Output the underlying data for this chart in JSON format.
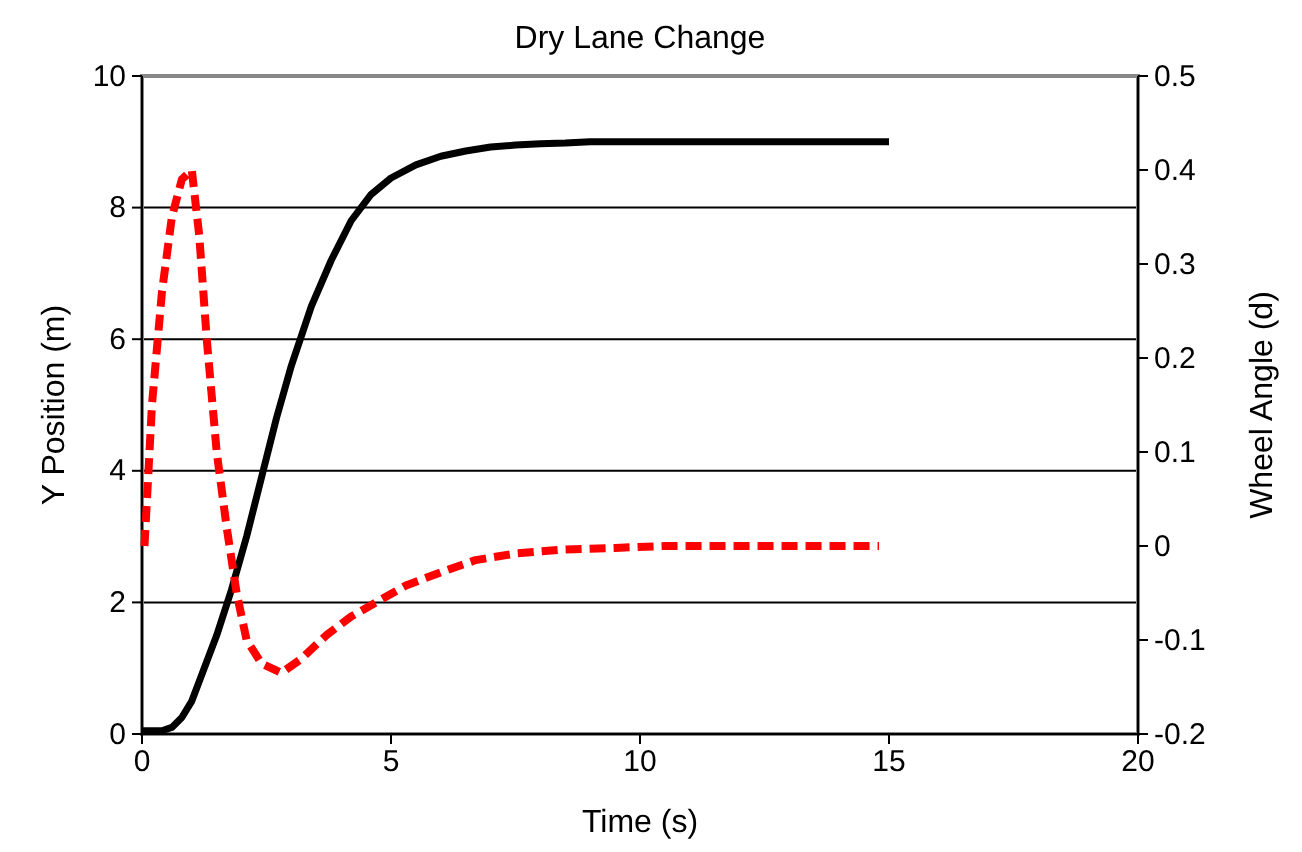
{
  "chart_data": {
    "type": "line",
    "title": "Dry Lane Change",
    "xlabel": "Time (s)",
    "ylabel": "Y Position (m)",
    "y2label": "Wheel Angle  (d)",
    "xlim": [
      0,
      20
    ],
    "xticks": [
      0,
      5,
      10,
      15,
      20
    ],
    "ylim": [
      0,
      10
    ],
    "yticks": [
      0,
      2,
      4,
      6,
      8,
      10
    ],
    "y2lim": [
      -0.2,
      0.5
    ],
    "y2ticks": [
      {
        "value": -0.2,
        "label": "-0.2"
      },
      {
        "value": -0.1,
        "label": "-0.1"
      },
      0,
      0.1,
      0.2,
      0.3,
      0.4,
      0.5
    ],
    "grid": "y",
    "series": [
      {
        "color": "#000000",
        "line_style": "solid",
        "x": [
          0,
          0.4,
          0.6,
          0.8,
          1.0,
          1.2,
          1.5,
          1.8,
          2.1,
          2.4,
          2.7,
          3.0,
          3.4,
          3.8,
          4.2,
          4.6,
          5.0,
          5.5,
          6.0,
          6.5,
          7.0,
          7.5,
          8.0,
          8.5,
          9,
          10,
          12,
          15
        ],
        "values": [
          0.05,
          0.05,
          0.1,
          0.25,
          0.5,
          0.9,
          1.5,
          2.2,
          3.0,
          3.9,
          4.8,
          5.6,
          6.5,
          7.2,
          7.8,
          8.2,
          8.45,
          8.65,
          8.78,
          8.86,
          8.92,
          8.95,
          8.97,
          8.98,
          9,
          9,
          9,
          9
        ]
      },
      {
        "color": "#ff0000",
        "axis": "y2",
        "line_style": "dashed",
        "x": [
          0.05,
          0.2,
          0.4,
          0.6,
          0.8,
          1.0,
          1.15,
          1.3,
          1.5,
          1.7,
          1.9,
          2.1,
          2.4,
          2.8,
          3.2,
          3.7,
          4.2,
          4.7,
          5.3,
          6.0,
          6.7,
          7.5,
          8.4,
          9.5,
          10.5,
          12,
          13.5,
          14.8
        ],
        "values": [
          0,
          0.15,
          0.27,
          0.35,
          0.39,
          0.4,
          0.33,
          0.22,
          0.1,
          0.02,
          -0.05,
          -0.1,
          -0.125,
          -0.135,
          -0.12,
          -0.095,
          -0.075,
          -0.06,
          -0.042,
          -0.028,
          -0.015,
          -0.008,
          -0.004,
          -0.002,
          0,
          0,
          0,
          0
        ]
      }
    ]
  }
}
